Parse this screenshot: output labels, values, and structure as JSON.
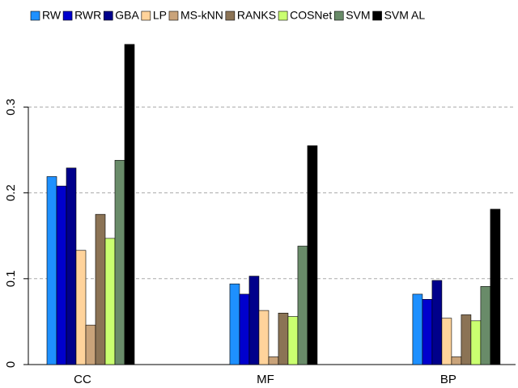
{
  "chart_data": {
    "type": "bar",
    "categories": [
      "CC",
      "MF",
      "BP"
    ],
    "series": [
      {
        "name": "RW",
        "color": "#1e90ff",
        "values": [
          0.219,
          0.094,
          0.082
        ]
      },
      {
        "name": "RWR",
        "color": "#0000cd",
        "values": [
          0.208,
          0.082,
          0.076
        ]
      },
      {
        "name": "GBA",
        "color": "#00008b",
        "values": [
          0.229,
          0.103,
          0.098
        ]
      },
      {
        "name": "LP",
        "color": "#ffd39b",
        "values": [
          0.133,
          0.063,
          0.054
        ]
      },
      {
        "name": "MS-kNN",
        "color": "#c9a37a",
        "values": [
          0.046,
          0.009,
          0.009
        ]
      },
      {
        "name": "RANKS",
        "color": "#8b7355",
        "values": [
          0.175,
          0.06,
          0.058
        ]
      },
      {
        "name": "COSNet",
        "color": "#caff70",
        "values": [
          0.147,
          0.056,
          0.051
        ]
      },
      {
        "name": "SVM",
        "color": "#698b69",
        "values": [
          0.238,
          0.138,
          0.091
        ]
      },
      {
        "name": "SVM AL",
        "color": "#000000",
        "values": [
          0.373,
          0.255,
          0.181
        ]
      }
    ],
    "ylim": [
      0,
      0.42
    ],
    "yticks": [
      0,
      0.1,
      0.2,
      0.3
    ],
    "grid": true
  }
}
